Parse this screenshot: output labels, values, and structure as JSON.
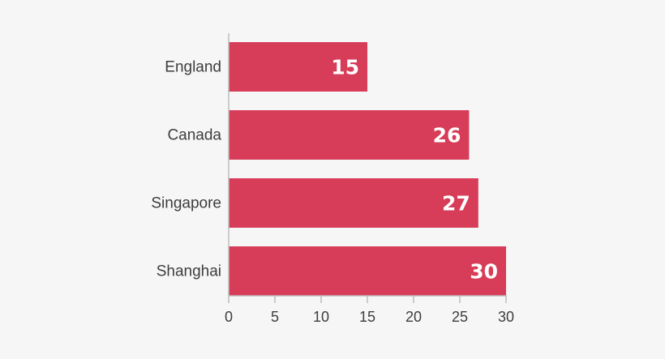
{
  "chart_data": {
    "type": "bar",
    "orientation": "horizontal",
    "categories": [
      "England",
      "Canada",
      "Singapore",
      "Shanghai"
    ],
    "values": [
      15,
      26,
      27,
      30
    ],
    "data_labels": [
      "15",
      "26",
      "27",
      "30"
    ],
    "x_ticks": [
      "0",
      "5",
      "10",
      "15",
      "20",
      "25",
      "30"
    ],
    "xlim": [
      0,
      30
    ],
    "grid": false,
    "legend": "none",
    "title": "",
    "xlabel": "",
    "ylabel": "",
    "bar_color": "#d73c58",
    "axis_color": "#bdbdbd",
    "text_color": "#3d3d3d",
    "background_color": "#f6f6f6"
  }
}
